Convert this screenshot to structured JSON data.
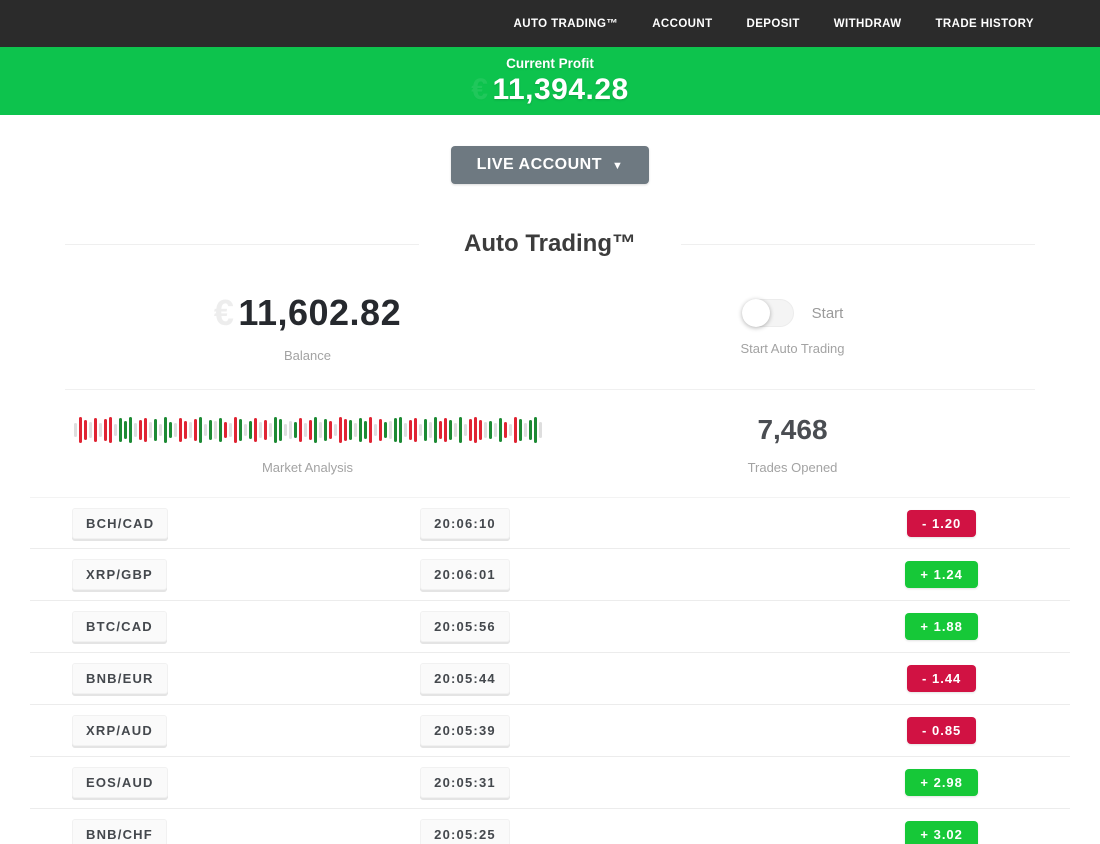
{
  "nav": {
    "items": [
      {
        "label": "AUTO TRADING™"
      },
      {
        "label": "ACCOUNT"
      },
      {
        "label": "DEPOSIT"
      },
      {
        "label": "WITHDRAW"
      },
      {
        "label": "TRADE HISTORY"
      }
    ]
  },
  "profit_banner": {
    "label": "Current Profit",
    "currency_ghost": "€",
    "amount": "11,394.28"
  },
  "account_selector": {
    "label": "LIVE ACCOUNT",
    "caret": "▼"
  },
  "section": {
    "title": "Auto Trading™"
  },
  "stats": {
    "balance": {
      "currency_ghost": "€",
      "value": "11,602.82",
      "label": "Balance"
    },
    "auto_trading": {
      "toggle_on": false,
      "toggle_label": "Start",
      "label": "Start Auto Trading"
    },
    "market": {
      "label": "Market Analysis",
      "bars": [
        "n14",
        "r26",
        "r20",
        "n16",
        "r24",
        "n14",
        "r22",
        "r26",
        "n12",
        "g24",
        "g18",
        "g26",
        "n14",
        "r20",
        "r24",
        "n16",
        "g22",
        "n12",
        "g26",
        "g16",
        "n14",
        "r24",
        "r18",
        "n16",
        "r22",
        "g26",
        "n12",
        "g20",
        "n18",
        "g24",
        "r16",
        "n14",
        "r26",
        "g22",
        "n12",
        "g18",
        "r24",
        "n16",
        "r20",
        "n14",
        "g26",
        "g22",
        "n12",
        "n18",
        "g16",
        "r24",
        "n14",
        "r20",
        "g26",
        "n16",
        "g22",
        "r18",
        "n12",
        "r26",
        "r22",
        "g20",
        "n14",
        "g24",
        "g18",
        "r26",
        "n12",
        "r22",
        "g16",
        "n18",
        "g24",
        "g26",
        "n14",
        "r20",
        "r24",
        "n12",
        "g22",
        "n16",
        "g26",
        "r18",
        "r24",
        "g20",
        "n14",
        "g26",
        "n12",
        "r22",
        "r26",
        "r20",
        "n16",
        "g18",
        "n14",
        "g24",
        "r16",
        "n12",
        "r26",
        "g22",
        "n14",
        "g20",
        "g26",
        "n16"
      ]
    },
    "trades_opened": {
      "value": "7,468",
      "label": "Trades Opened"
    }
  },
  "trades": [
    {
      "pair": "BCH/CAD",
      "time": "20:06:10",
      "change": "-  1.20",
      "direction": "loss"
    },
    {
      "pair": "XRP/GBP",
      "time": "20:06:01",
      "change": "+  1.24",
      "direction": "gain"
    },
    {
      "pair": "BTC/CAD",
      "time": "20:05:56",
      "change": "+  1.88",
      "direction": "gain"
    },
    {
      "pair": "BNB/EUR",
      "time": "20:05:44",
      "change": "-  1.44",
      "direction": "loss"
    },
    {
      "pair": "XRP/AUD",
      "time": "20:05:39",
      "change": "-  0.85",
      "direction": "loss"
    },
    {
      "pair": "EOS/AUD",
      "time": "20:05:31",
      "change": "+  2.98",
      "direction": "gain"
    },
    {
      "pair": "BNB/CHF",
      "time": "20:05:25",
      "change": "+  3.02",
      "direction": "gain"
    }
  ],
  "colors": {
    "navbar_bg": "#2b2b2b",
    "banner_green": "#0dc34d",
    "badge_green": "#16c838",
    "badge_red": "#d11243",
    "bar_red": "#e02433",
    "bar_green": "#1d8a34",
    "bar_neutral": "#dedede",
    "button_gray": "#6e7981"
  }
}
